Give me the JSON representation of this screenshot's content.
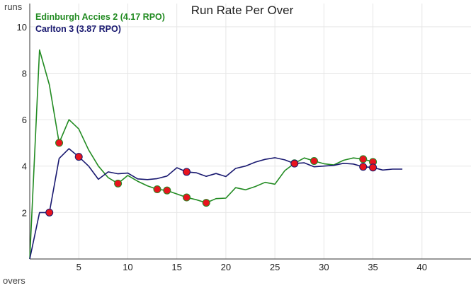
{
  "chart_data": {
    "type": "line",
    "title": "Run Rate Per Over",
    "ylabel": "runs",
    "xlabel": "overs",
    "xlim": [
      0,
      45
    ],
    "ylim": [
      0,
      11
    ],
    "xticks": [
      5,
      10,
      15,
      20,
      25,
      30,
      35,
      40
    ],
    "yticks": [
      2,
      4,
      6,
      8,
      10
    ],
    "grid": true,
    "legend_position": "top-left",
    "series": [
      {
        "name": "Edinburgh Accies 2 (4.17 RPO)",
        "color": "#228B22",
        "x": [
          0,
          1,
          2,
          3,
          4,
          5,
          6,
          7,
          8,
          9,
          10,
          11,
          12,
          13,
          14,
          15,
          16,
          17,
          18,
          19,
          20,
          21,
          22,
          23,
          24,
          25,
          26,
          27,
          28,
          29,
          30,
          31,
          32,
          33,
          34,
          35
        ],
        "y": [
          0,
          9.0,
          7.5,
          5.0,
          6.0,
          5.6,
          4.7,
          4.0,
          3.5,
          3.25,
          3.6,
          3.35,
          3.15,
          3.0,
          2.95,
          2.8,
          2.65,
          2.55,
          2.42,
          2.6,
          2.62,
          3.07,
          2.98,
          3.12,
          3.3,
          3.22,
          3.8,
          4.12,
          4.35,
          4.22,
          4.1,
          4.05,
          4.25,
          4.35,
          4.3,
          4.18
        ],
        "wickets": [
          3,
          9,
          13,
          14,
          16,
          18,
          27,
          29,
          34,
          35
        ]
      },
      {
        "name": "Carlton 3 (3.87 RPO)",
        "color": "#191970",
        "x": [
          0,
          1,
          2,
          3,
          4,
          5,
          6,
          7,
          8,
          9,
          10,
          11,
          12,
          13,
          14,
          15,
          16,
          17,
          18,
          19,
          20,
          21,
          22,
          23,
          24,
          25,
          26,
          27,
          28,
          29,
          30,
          31,
          32,
          33,
          34,
          35,
          36,
          37,
          38
        ],
        "y": [
          0,
          2.0,
          2.0,
          4.33,
          4.75,
          4.4,
          4.0,
          3.43,
          3.75,
          3.67,
          3.7,
          3.45,
          3.42,
          3.46,
          3.57,
          3.93,
          3.75,
          3.71,
          3.56,
          3.68,
          3.55,
          3.9,
          4.0,
          4.17,
          4.29,
          4.36,
          4.27,
          4.11,
          4.14,
          3.97,
          4.0,
          4.03,
          4.12,
          4.09,
          3.97,
          3.94,
          3.83,
          3.87,
          3.87
        ],
        "wickets": [
          2,
          5,
          16,
          27,
          34,
          35
        ]
      }
    ]
  }
}
